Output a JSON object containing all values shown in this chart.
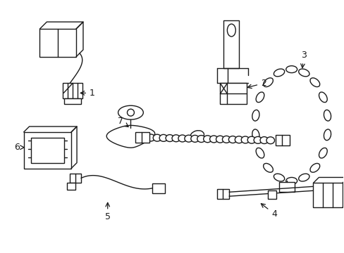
{
  "background_color": "#ffffff",
  "line_color": "#1a1a1a",
  "line_width": 1.0,
  "label_fontsize": 9,
  "fig_width": 4.89,
  "fig_height": 3.6
}
